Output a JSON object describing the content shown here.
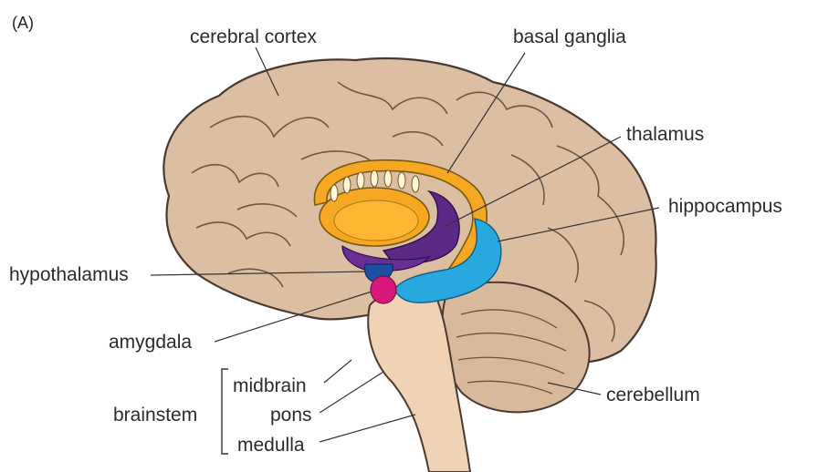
{
  "figure": {
    "panel_label": "(A)"
  },
  "labels": {
    "cerebral_cortex": "cerebral cortex",
    "basal_ganglia": "basal ganglia",
    "thalamus": "thalamus",
    "hippocampus": "hippocampus",
    "hypothalamus": "hypothalamus",
    "amygdala": "amygdala",
    "brainstem": "brainstem",
    "midbrain": "midbrain",
    "pons": "pons",
    "medulla": "medulla",
    "cerebellum": "cerebellum"
  },
  "colors": {
    "cortex": "#dcbfa3",
    "cortex_outline": "#4a3a30",
    "basal_ganglia": "#f7a823",
    "thalamus": "#5b2a86",
    "hippocampus": "#29a8e0",
    "hypothalamus": "#1f4fa0",
    "amygdala": "#d8187b",
    "brainstem": "#f0d2b4",
    "cerebellum": "#d9b99c"
  }
}
